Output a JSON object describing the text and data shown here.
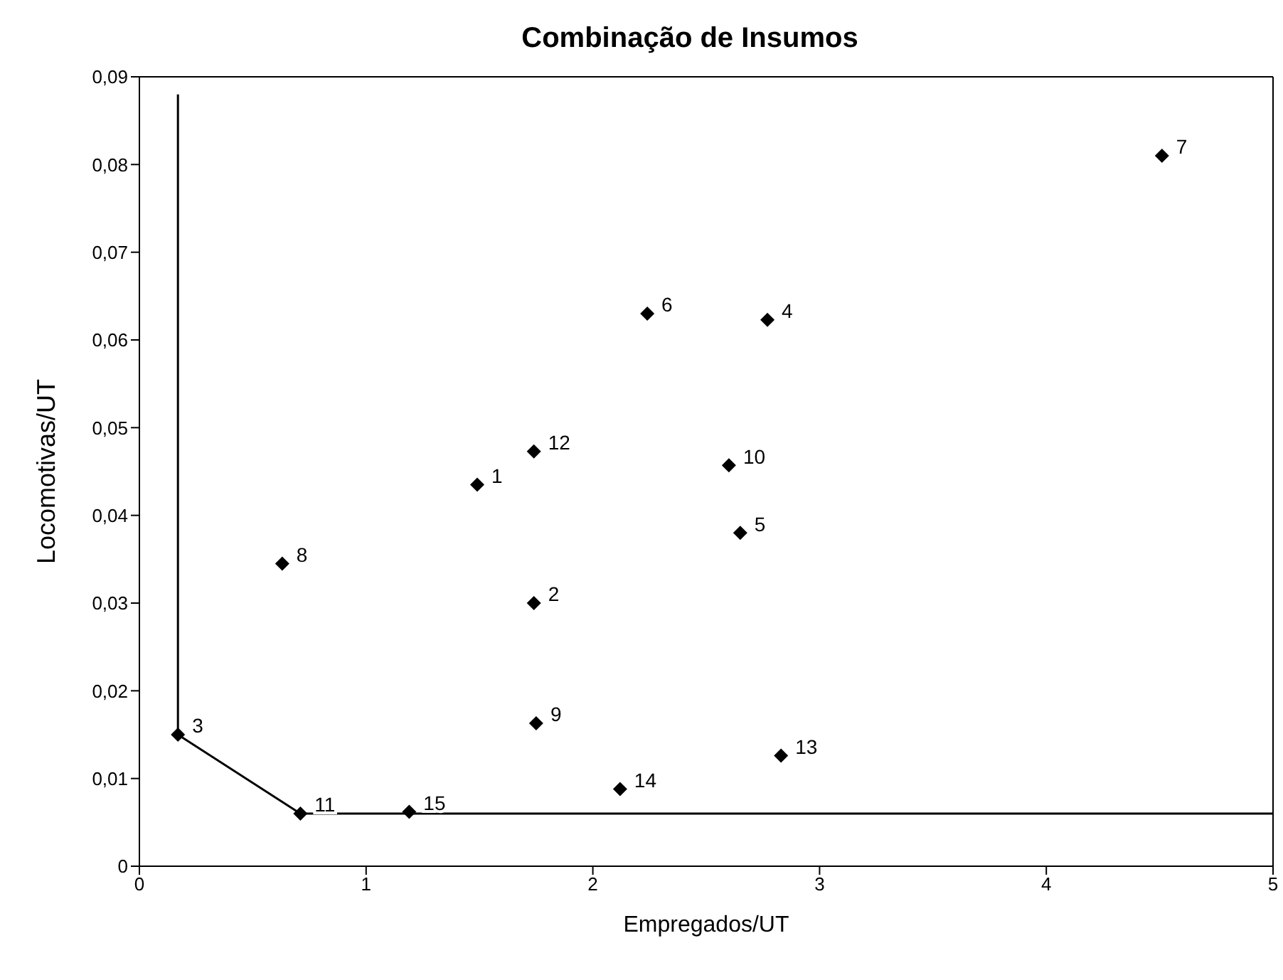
{
  "chart_data": {
    "type": "scatter",
    "title": "Combinação de Insumos",
    "xlabel": "Empregados/UT",
    "ylabel": "Locomotivas/UT",
    "xlim": [
      0,
      5
    ],
    "xticks": [
      0,
      1,
      2,
      3,
      4,
      5
    ],
    "ylim": [
      0,
      0.09
    ],
    "yticks": [
      {
        "value": 0,
        "label": "0"
      },
      {
        "value": 0.01,
        "label": "0,01"
      },
      {
        "value": 0.02,
        "label": "0,02"
      },
      {
        "value": 0.03,
        "label": "0,03"
      },
      {
        "value": 0.04,
        "label": "0,04"
      },
      {
        "value": 0.05,
        "label": "0,05"
      },
      {
        "value": 0.06,
        "label": "0,06"
      },
      {
        "value": 0.07,
        "label": "0,07"
      },
      {
        "value": 0.08,
        "label": "0,08"
      },
      {
        "value": 0.09,
        "label": "0,09"
      }
    ],
    "series": [
      {
        "color": "#000000",
        "marker": "diamond",
        "x": [
          1.49,
          1.74,
          0.17,
          2.77,
          2.65,
          2.24,
          4.51,
          0.63,
          1.75,
          2.6,
          0.71,
          1.74,
          2.83,
          2.12,
          1.19
        ],
        "values": [
          0.0435,
          0.03,
          0.015,
          0.0623,
          0.038,
          0.063,
          0.081,
          0.0345,
          0.0163,
          0.0457,
          0.006,
          0.0473,
          0.0126,
          0.0088,
          0.0062
        ]
      },
      {
        "type": "line",
        "color": "#000000",
        "line_style": "solid",
        "x": [
          0.17,
          0.17,
          0.71,
          5
        ],
        "values": [
          0.088,
          0.015,
          0.006,
          0.006
        ]
      }
    ],
    "annotations": [
      {
        "text": "1",
        "x": 1.49,
        "y": 0.0435
      },
      {
        "text": "2",
        "x": 1.74,
        "y": 0.03
      },
      {
        "text": "3",
        "x": 0.17,
        "y": 0.015
      },
      {
        "text": "4",
        "x": 2.77,
        "y": 0.0623
      },
      {
        "text": "5",
        "x": 2.65,
        "y": 0.038
      },
      {
        "text": "6",
        "x": 2.24,
        "y": 0.063
      },
      {
        "text": "7",
        "x": 4.51,
        "y": 0.081
      },
      {
        "text": "8",
        "x": 0.63,
        "y": 0.0345
      },
      {
        "text": "9",
        "x": 1.75,
        "y": 0.0163
      },
      {
        "text": "10",
        "x": 2.6,
        "y": 0.0457
      },
      {
        "text": "11",
        "x": 0.71,
        "y": 0.006
      },
      {
        "text": "12",
        "x": 1.74,
        "y": 0.0473
      },
      {
        "text": "13",
        "x": 2.83,
        "y": 0.0126
      },
      {
        "text": "14",
        "x": 2.12,
        "y": 0.0088
      },
      {
        "text": "15",
        "x": 1.19,
        "y": 0.0062
      }
    ]
  }
}
